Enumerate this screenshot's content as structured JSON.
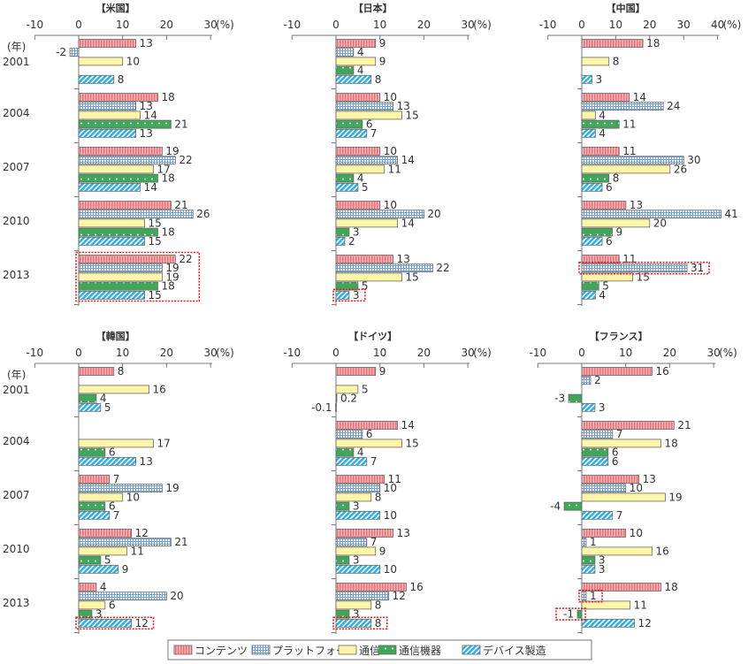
{
  "chart_data": {
    "type": "bar",
    "orientation": "horizontal",
    "unit_label": "(%)",
    "year_unit_label": "(年)",
    "categories": [
      "2001",
      "2004",
      "2007",
      "2010",
      "2013"
    ],
    "legend": {
      "position": "bottom",
      "entries": [
        "コンテンツ",
        "プラットフォーム",
        "通信",
        "通信機器",
        "デバイス製造"
      ]
    },
    "series_styles": [
      {
        "name": "コンテンツ",
        "fill": "#f48a8f",
        "pattern": "vertical-stripes"
      },
      {
        "name": "プラットフォーム",
        "fill": "#a9c8ee",
        "pattern": "grid"
      },
      {
        "name": "通信",
        "fill": "#fdf5a8",
        "pattern": "solid"
      },
      {
        "name": "通信機器",
        "fill": "#3fa65a",
        "pattern": "dots"
      },
      {
        "name": "デバイス製造",
        "fill": "#39b6e8",
        "pattern": "diagonal-stripes"
      }
    ],
    "highlight_color": "#e02020",
    "panels": [
      {
        "title": "【米国】",
        "xlim": [
          -10,
          30
        ],
        "ticks": [
          "-10",
          "0",
          "10",
          "20",
          "30"
        ],
        "show_year_labels": true,
        "series": [
          {
            "name": "コンテンツ",
            "values": [
              13,
              18,
              19,
              21,
              22
            ]
          },
          {
            "name": "プラットフォーム",
            "values": [
              -2,
              13,
              22,
              26,
              19
            ]
          },
          {
            "name": "通信",
            "values": [
              10,
              14,
              17,
              15,
              19
            ]
          },
          {
            "name": "通信機器",
            "values": [
              null,
              21,
              18,
              18,
              18
            ]
          },
          {
            "name": "デバイス製造",
            "values": [
              8,
              13,
              14,
              15,
              15
            ]
          }
        ],
        "highlights": [
          {
            "year": "2013",
            "series": "all"
          }
        ]
      },
      {
        "title": "【日本】",
        "xlim": [
          -10,
          30
        ],
        "ticks": [
          "-10",
          "0",
          "10",
          "20",
          "30"
        ],
        "show_year_labels": false,
        "series": [
          {
            "name": "コンテンツ",
            "values": [
              9,
              10,
              10,
              10,
              13
            ]
          },
          {
            "name": "プラットフォーム",
            "values": [
              4,
              13,
              14,
              20,
              22
            ]
          },
          {
            "name": "通信",
            "values": [
              9,
              15,
              11,
              14,
              15
            ]
          },
          {
            "name": "通信機器",
            "values": [
              4,
              6,
              4,
              3,
              5
            ]
          },
          {
            "name": "デバイス製造",
            "values": [
              8,
              7,
              5,
              2,
              3
            ]
          }
        ],
        "highlights": [
          {
            "year": "2013",
            "series": "デバイス製造"
          }
        ]
      },
      {
        "title": "【中国】",
        "xlim": [
          -10,
          40
        ],
        "ticks": [
          "-10",
          "0",
          "10",
          "20",
          "30",
          "40"
        ],
        "show_year_labels": false,
        "series": [
          {
            "name": "コンテンツ",
            "values": [
              18,
              14,
              11,
              13,
              11
            ]
          },
          {
            "name": "プラットフォーム",
            "values": [
              null,
              24,
              30,
              41,
              31
            ]
          },
          {
            "name": "通信",
            "values": [
              8,
              4,
              26,
              20,
              15
            ]
          },
          {
            "name": "通信機器",
            "values": [
              null,
              11,
              8,
              9,
              5
            ]
          },
          {
            "name": "デバイス製造",
            "values": [
              3,
              4,
              6,
              6,
              4
            ]
          }
        ],
        "highlights": [
          {
            "year": "2013",
            "series": "プラットフォーム"
          }
        ]
      },
      {
        "title": "【韓国】",
        "xlim": [
          -10,
          30
        ],
        "ticks": [
          "-10",
          "0",
          "10",
          "20",
          "30"
        ],
        "show_year_labels": true,
        "series": [
          {
            "name": "コンテンツ",
            "values": [
              8,
              null,
              7,
              12,
              4
            ]
          },
          {
            "name": "プラットフォーム",
            "values": [
              null,
              null,
              19,
              21,
              20
            ]
          },
          {
            "name": "通信",
            "values": [
              16,
              17,
              10,
              11,
              6
            ]
          },
          {
            "name": "通信機器",
            "values": [
              4,
              6,
              6,
              5,
              3
            ]
          },
          {
            "name": "デバイス製造",
            "values": [
              5,
              13,
              7,
              9,
              12
            ]
          }
        ],
        "highlights": [
          {
            "year": "2013",
            "series": "デバイス製造"
          }
        ]
      },
      {
        "title": "【ドイツ】",
        "xlim": [
          -10,
          30
        ],
        "ticks": [
          "-10",
          "0",
          "10",
          "20",
          "30"
        ],
        "show_year_labels": false,
        "series": [
          {
            "name": "コンテンツ",
            "values": [
              9,
              14,
              11,
              13,
              16
            ]
          },
          {
            "name": "プラットフォーム",
            "values": [
              null,
              6,
              10,
              7,
              12
            ]
          },
          {
            "name": "通信",
            "values": [
              5,
              15,
              8,
              9,
              8
            ]
          },
          {
            "name": "通信機器",
            "values": [
              0.2,
              4,
              3,
              3,
              3
            ]
          },
          {
            "name": "デバイス製造",
            "values": [
              -0.1,
              7,
              10,
              10,
              8
            ]
          }
        ],
        "highlights": [
          {
            "year": "2013",
            "series": "デバイス製造"
          }
        ]
      },
      {
        "title": "【フランス】",
        "xlim": [
          -10,
          30
        ],
        "ticks": [
          "-10",
          "0",
          "10",
          "20",
          "30"
        ],
        "show_year_labels": false,
        "series": [
          {
            "name": "コンテンツ",
            "values": [
              16,
              21,
              13,
              10,
              18
            ]
          },
          {
            "name": "プラットフォーム",
            "values": [
              2,
              7,
              10,
              1,
              1
            ]
          },
          {
            "name": "通信",
            "values": [
              null,
              18,
              19,
              16,
              11
            ]
          },
          {
            "name": "通信機器",
            "values": [
              -3,
              6,
              -4,
              3,
              -1
            ]
          },
          {
            "name": "デバイス製造",
            "values": [
              3,
              6,
              7,
              3,
              12
            ]
          }
        ],
        "highlights": [
          {
            "year": "2013",
            "series": "プラットフォーム"
          },
          {
            "year": "2013",
            "series": "通信機器"
          }
        ]
      }
    ]
  }
}
